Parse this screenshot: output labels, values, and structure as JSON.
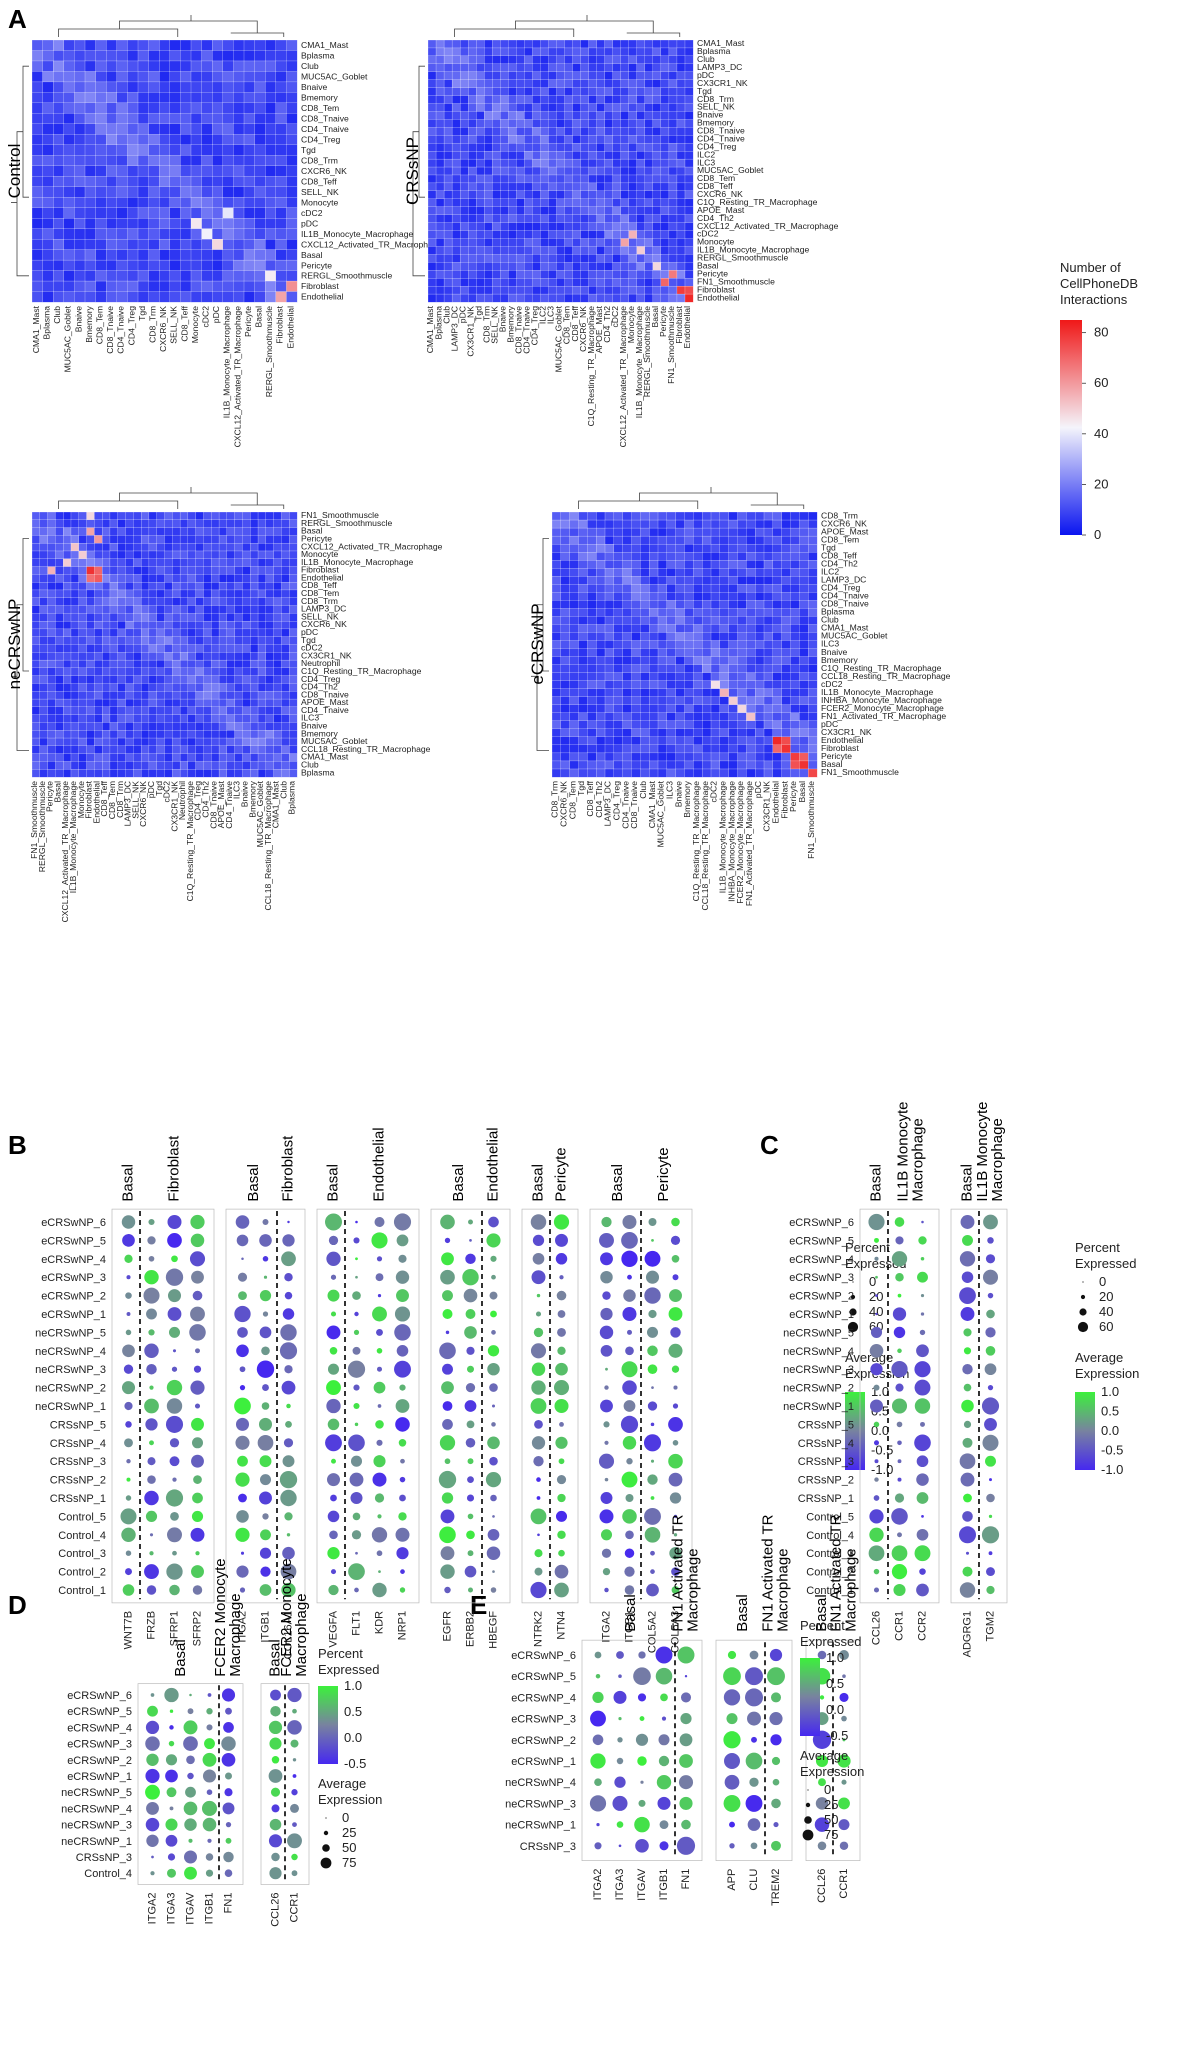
{
  "panels": {
    "A": "A",
    "B": "B",
    "C": "C",
    "D": "D",
    "E": "E"
  },
  "heatmap_legend": {
    "title_lines": [
      "Number of",
      "CellPhoneDB",
      "Interactions"
    ],
    "ticks": [
      80,
      60,
      40,
      20,
      0
    ],
    "colors": {
      "low": "#0a14f0",
      "mid": "#f4f4fb",
      "high": "#f01818"
    }
  },
  "heatmaps": [
    {
      "condition": "Control",
      "rows": [
        "CMA1_Mast",
        "Bplasma",
        "Club",
        "MUC5AC_Goblet",
        "Bnaive",
        "Bmemory",
        "CD8_Tem",
        "CD8_Tnaive",
        "CD4_Tnaive",
        "CD4_Treg",
        "Tgd",
        "CD8_Trm",
        "CXCR6_NK",
        "CD8_Teff",
        "SELL_NK",
        "Monocyte",
        "cDC2",
        "pDC",
        "IL1B_Monocyte_Macrophage",
        "CXCL12_Activated_TR_Macrophage",
        "Basal",
        "Pericyte",
        "RERGL_Smoothmuscle",
        "Fibroblast",
        "Endothelial"
      ],
      "cols": [
        "CMA1_Mast",
        "Bplasma",
        "Club",
        "MUC5AC_Goblet",
        "Bnaive",
        "Bmemory",
        "CD8_Tem",
        "CD8_Tnaive",
        "CD4_Tnaive",
        "CD4_Treg",
        "Tgd",
        "CD8_Trm",
        "CXCR6_NK",
        "SELL_NK",
        "CD8_Teff",
        "Monocyte",
        "cDC2",
        "pDC",
        "IL1B_Monocyte_Macrophage",
        "CXCL12_Activated_TR_Macrophage",
        "Pericyte",
        "Basal",
        "RERGL_Smoothmuscle",
        "Fibroblast",
        "Endothelial"
      ],
      "hotspots": [
        [
          17,
          15,
          45
        ],
        [
          18,
          16,
          42
        ],
        [
          19,
          17,
          48
        ],
        [
          16,
          18,
          40
        ],
        [
          23,
          24,
          62
        ],
        [
          24,
          23,
          58
        ],
        [
          22,
          22,
          44
        ]
      ]
    },
    {
      "condition": "CRSsNP",
      "rows": [
        "CMA1_Mast",
        "Bplasma",
        "Club",
        "LAMP3_DC",
        "pDC",
        "CX3CR1_NK",
        "Tgd",
        "CD8_Trm",
        "SELL_NK",
        "Bnaive",
        "Bmemory",
        "CD8_Tnaive",
        "CD4_Tnaive",
        "CD4_Treg",
        "ILC2",
        "ILC3",
        "MUC5AC_Goblet",
        "CD8_Tem",
        "CD8_Teff",
        "CXCR6_NK",
        "C1Q_Resting_TR_Macrophage",
        "APOE_Mast",
        "CD4_Th2",
        "CXCL12_Activated_TR_Macrophage",
        "cDC2",
        "Monocyte",
        "IL1B_Monocyte_Macrophage",
        "RERGL_Smoothmuscle",
        "Basal",
        "Pericyte",
        "FN1_Smoothmuscle",
        "Fibroblast",
        "Endothelial"
      ],
      "cols": [
        "CMA1_Mast",
        "Bplasma",
        "Club",
        "LAMP3_DC",
        "pDC",
        "CX3CR1_NK",
        "Tgd",
        "CD8_Trm",
        "SELL_NK",
        "Bnaive",
        "Bmemory",
        "CD8_Tnaive",
        "CD4_Tnaive",
        "CD4_Treg",
        "ILC2",
        "ILC3",
        "MUC5AC_Goblet",
        "CD8_Tem",
        "CD8_Teff",
        "CXCR6_NK",
        "C1Q_Resting_TR_Macrophage",
        "APOE_Mast",
        "CD4_Th2",
        "cDC2",
        "CXCL12_Activated_TR_Macrophage",
        "Monocyte",
        "IL1B_Monocyte_Macrophage",
        "RERGL_Smoothmuscle",
        "Basal",
        "Pericyte",
        "FN1_Smoothmuscle",
        "Fibroblast",
        "Endothelial"
      ],
      "hotspots": [
        [
          25,
          24,
          58
        ],
        [
          24,
          25,
          55
        ],
        [
          26,
          26,
          50
        ],
        [
          31,
          31,
          78
        ],
        [
          32,
          32,
          82
        ],
        [
          30,
          29,
          70
        ],
        [
          29,
          30,
          66
        ],
        [
          31,
          32,
          75
        ],
        [
          28,
          28,
          48
        ]
      ]
    },
    {
      "condition": "neCRSwNP",
      "rows": [
        "FN1_Smoothmuscle",
        "RERGL_Smoothmuscle",
        "Basal",
        "Pericyte",
        "CXCL12_Activated_TR_Macrophage",
        "Monocyte",
        "IL1B_Monocyte_Macrophage",
        "Fibroblast",
        "Endothelial",
        "CD8_Teff",
        "CD8_Tem",
        "CD8_Trm",
        "LAMP3_DC",
        "SELL_NK",
        "CXCR6_NK",
        "pDC",
        "Tgd",
        "cDC2",
        "CX3CR1_NK",
        "Neutrophil",
        "C1Q_Resting_TR_Macrophage",
        "CD4_Treg",
        "CD4_Th2",
        "CD8_Tnaive",
        "APOE_Mast",
        "CD4_Tnaive",
        "ILC3",
        "Bnaive",
        "Bmemory",
        "MUC5AC_Goblet",
        "CCL18_Resting_TR_Macrophage",
        "CMA1_Mast",
        "Club",
        "Bplasma"
      ],
      "cols": [
        "FN1_Smoothmuscle",
        "RERGL_Smoothmuscle",
        "Pericyte",
        "Basal",
        "CXCL12_Activated_TR_Macrophage",
        "IL1B_Monocyte_Macrophage",
        "Monocyte",
        "Fibroblast",
        "Endothelial",
        "CD8_Teff",
        "CD8_Tem",
        "CD8_Trm",
        "LAMP3_DC",
        "SELL_NK",
        "CXCR6_NK",
        "pDC",
        "Tgd",
        "cDC2",
        "CX3CR1_NK",
        "Neutrophil",
        "C1Q_Resting_TR_Macrophage",
        "CD4_Treg",
        "CD4_Th2",
        "CD8_Tnaive",
        "APOE_Mast",
        "CD4_Tnaive",
        "ILC3",
        "Bnaive",
        "Bmemory",
        "MUC5AC_Goblet",
        "CCL18_Resting_TR_Macrophage",
        "CMA1_Mast",
        "Club",
        "Bplasma"
      ],
      "hotspots": [
        [
          7,
          7,
          80
        ],
        [
          8,
          8,
          72
        ],
        [
          7,
          8,
          70
        ],
        [
          8,
          7,
          68
        ],
        [
          2,
          7,
          58
        ],
        [
          3,
          8,
          60
        ],
        [
          7,
          2,
          55
        ],
        [
          4,
          5,
          52
        ],
        [
          5,
          6,
          50
        ],
        [
          6,
          4,
          50
        ],
        [
          0,
          7,
          48
        ]
      ]
    },
    {
      "condition": "eCRSwNP",
      "rows": [
        "CD8_Trm",
        "CXCR6_NK",
        "APOE_Mast",
        "CD8_Tem",
        "Tgd",
        "CD8_Teff",
        "CD4_Th2",
        "ILC2",
        "LAMP3_DC",
        "CD4_Treg",
        "CD4_Tnaive",
        "CD8_Tnaive",
        "Bplasma",
        "Club",
        "CMA1_Mast",
        "MUC5AC_Goblet",
        "ILC3",
        "Bnaive",
        "Bmemory",
        "C1Q_Resting_TR_Macrophage",
        "CCL18_Resting_TR_Macrophage",
        "cDC2",
        "IL1B_Monocyte_Macrophage",
        "INHBA_Monocyte_Macrophage",
        "FCER2_Monocyte_Macrophage",
        "FN1_Activated_TR_Macrophage",
        "pDC",
        "CX3CR1_NK",
        "Endothelial",
        "Fibroblast",
        "Pericyte",
        "Basal",
        "FN1_Smoothmuscle"
      ],
      "cols": [
        "CD8_Trm",
        "CXCR6_NK",
        "CD8_Tem",
        "Tgd",
        "CD8_Teff",
        "CD4_Th2",
        "LAMP3_DC",
        "CD4_Treg",
        "CD4_Tnaive",
        "CD8_Tnaive",
        "Club",
        "CMA1_Mast",
        "MUC5AC_Goblet",
        "ILC3",
        "Bnaive",
        "Bmemory",
        "C1Q_Resting_TR_Macrophage",
        "CCL18_Resting_TR_Macrophage",
        "cDC2",
        "IL1B_Monocyte_Macrophage",
        "INHBA_Monocyte_Macrophage",
        "FCER2_Monocyte_Macrophage",
        "FN1_Activated_TR_Macrophage",
        "pDC",
        "CX3CR1_NK",
        "Endothelial",
        "Fibroblast",
        "Pericyte",
        "Basal",
        "FN1_Smoothmuscle"
      ],
      "hotspots": [
        [
          28,
          25,
          82
        ],
        [
          29,
          26,
          80
        ],
        [
          30,
          27,
          78
        ],
        [
          31,
          28,
          80
        ],
        [
          32,
          29,
          76
        ],
        [
          28,
          26,
          75
        ],
        [
          29,
          25,
          70
        ],
        [
          30,
          28,
          72
        ],
        [
          31,
          27,
          74
        ],
        [
          22,
          19,
          55
        ],
        [
          23,
          20,
          50
        ],
        [
          24,
          21,
          48
        ],
        [
          25,
          22,
          52
        ],
        [
          21,
          18,
          46
        ]
      ]
    }
  ],
  "dot_panels": {
    "B": {
      "rows": [
        "eCRSwNP_6",
        "eCRSwNP_5",
        "eCRSwNP_4",
        "eCRSwNP_3",
        "eCRSwNP_2",
        "eCRSwNP_1",
        "neCRSwNP_5",
        "neCRSwNP_4",
        "neCRSwNP_3",
        "neCRSwNP_2",
        "neCRSwNP_1",
        "CRSsNP_5",
        "CRSsNP_4",
        "CRSsNP_3",
        "CRSsNP_2",
        "CRSsNP_1",
        "Control_5",
        "Control_4",
        "Control_3",
        "Control_2",
        "Control_1"
      ],
      "blocks": [
        {
          "genes": [
            "WNT7B",
            "FRZB",
            "SFRP1",
            "SFRP2"
          ],
          "groups": [
            "Basal",
            "Fibroblast"
          ],
          "split": 1
        },
        {
          "genes": [
            "ITGA2",
            "ITGB1",
            "COL16A1"
          ],
          "groups": [
            "Basal",
            "Fibroblast"
          ],
          "split": 2
        },
        {
          "genes": [
            "VEGFA",
            "FLT1",
            "KDR",
            "NRP1"
          ],
          "groups": [
            "Basal",
            "Endothelial"
          ],
          "split": 1
        },
        {
          "genes": [
            "EGFR",
            "ERBB2",
            "HBEGF"
          ],
          "groups": [
            "Basal",
            "Endothelial"
          ],
          "split": 2
        },
        {
          "genes": [
            "NTRK2",
            "NTN4"
          ],
          "groups": [
            "Basal",
            "Pericyte"
          ],
          "split": 1
        },
        {
          "genes": [
            "ITGA2",
            "ITGB1",
            "COL5A2",
            "COL5A3"
          ],
          "groups": [
            "Basal",
            "Pericyte"
          ],
          "split": 2
        }
      ],
      "legend": {
        "pct_title_lines": [
          "Percent",
          "Expressed"
        ],
        "pct_values": [
          0,
          20,
          40,
          60
        ],
        "avg_title_lines": [
          "Average",
          "Expression"
        ],
        "avg_ticks": [
          "1.0",
          "0.5",
          "0.0",
          "-0.5",
          "-1.0"
        ]
      }
    },
    "C": {
      "rows": [
        "eCRSwNP_6",
        "eCRSwNP_5",
        "eCRSwNP_4",
        "eCRSwNP_3",
        "eCRSwNP_2",
        "eCRSwNP_1",
        "neCRSwNP_5",
        "neCRSwNP_4",
        "neCRSwNP_3",
        "neCRSwNP_2",
        "neCRSwNP_1",
        "CRSsNP_5",
        "CRSsNP_4",
        "CRSsNP_3",
        "CRSsNP_2",
        "CRSsNP_1",
        "Control_5",
        "Control_4",
        "Control_3",
        "Control_2",
        "Control_1"
      ],
      "blocks": [
        {
          "genes": [
            "CCL26",
            "CCR1",
            "CCR2"
          ],
          "groups": [
            "Basal",
            "IL1B Monocyte\nMacrophage"
          ],
          "split": 1
        },
        {
          "genes": [
            "ADGRG1",
            "TGM2"
          ],
          "groups": [
            "Basal",
            "IL1B Monocyte\nMacrophage"
          ],
          "split": 1
        }
      ],
      "legend": {
        "pct_title_lines": [
          "Percent",
          "Expressed"
        ],
        "pct_values": [
          0,
          20,
          40,
          60
        ],
        "avg_title_lines": [
          "Average",
          "Expression"
        ],
        "avg_ticks": [
          "1.0",
          "0.5",
          "0.0",
          "-0.5",
          "-1.0"
        ]
      }
    },
    "D": {
      "rows": [
        "eCRSwNP_6",
        "eCRSwNP_5",
        "eCRSwNP_4",
        "eCRSwNP_3",
        "eCRSwNP_2",
        "eCRSwNP_1",
        "neCRSwNP_5",
        "neCRSwNP_4",
        "neCRSwNP_3",
        "neCRSwNP_1",
        "CRSsNP_3",
        "Control_4"
      ],
      "blocks": [
        {
          "genes": [
            "ITGA2",
            "ITGA3",
            "ITGAV",
            "ITGB1",
            "FN1"
          ],
          "groups": [
            "Basal",
            "FCER2 Monocyte\nMacrophage"
          ],
          "split": 4
        },
        {
          "genes": [
            "CCL26",
            "CCR1"
          ],
          "groups": [
            "Basal",
            "FCER2 Monocyte\nMacrophage"
          ],
          "split": 1
        }
      ],
      "legend": {
        "pct_title_lines": [
          "Percent",
          "Expressed"
        ],
        "avg_ticks": [
          "1.0",
          "0.5",
          "0.0",
          "-0.5"
        ],
        "avg_title_lines": [
          "Average",
          "Expression"
        ],
        "size_values": [
          0,
          25,
          50,
          75
        ]
      }
    },
    "E": {
      "rows": [
        "eCRSwNP_6",
        "eCRSwNP_5",
        "eCRSwNP_4",
        "eCRSwNP_3",
        "eCRSwNP_2",
        "eCRSwNP_1",
        "neCRSwNP_4",
        "neCRSwNP_3",
        "neCRSwNP_1",
        "CRSsNP_3"
      ],
      "blocks": [
        {
          "genes": [
            "ITGA2",
            "ITGA3",
            "ITGAV",
            "ITGB1",
            "FN1"
          ],
          "groups": [
            "Basal",
            "FN1 Activated TR\nMacrophage"
          ],
          "split": 4
        },
        {
          "genes": [
            "APP",
            "CLU",
            "TREM2"
          ],
          "groups": [
            "Basal",
            "FN1 Activated TR\nMacrophage"
          ],
          "split": 2
        },
        {
          "genes": [
            "CCL26",
            "CCR1"
          ],
          "groups": [
            "Basal",
            "FN1 Activated TR\nMacrophage"
          ],
          "split": 1
        }
      ],
      "legend": {
        "pct_title_lines": [
          "Percent",
          "Expressed"
        ],
        "avg_ticks": [
          "1.0",
          "0.5",
          "0.0",
          "-0.5"
        ],
        "avg_title_lines": [
          "Average",
          "Expression"
        ],
        "size_values": [
          0,
          25,
          50,
          75
        ]
      }
    }
  }
}
